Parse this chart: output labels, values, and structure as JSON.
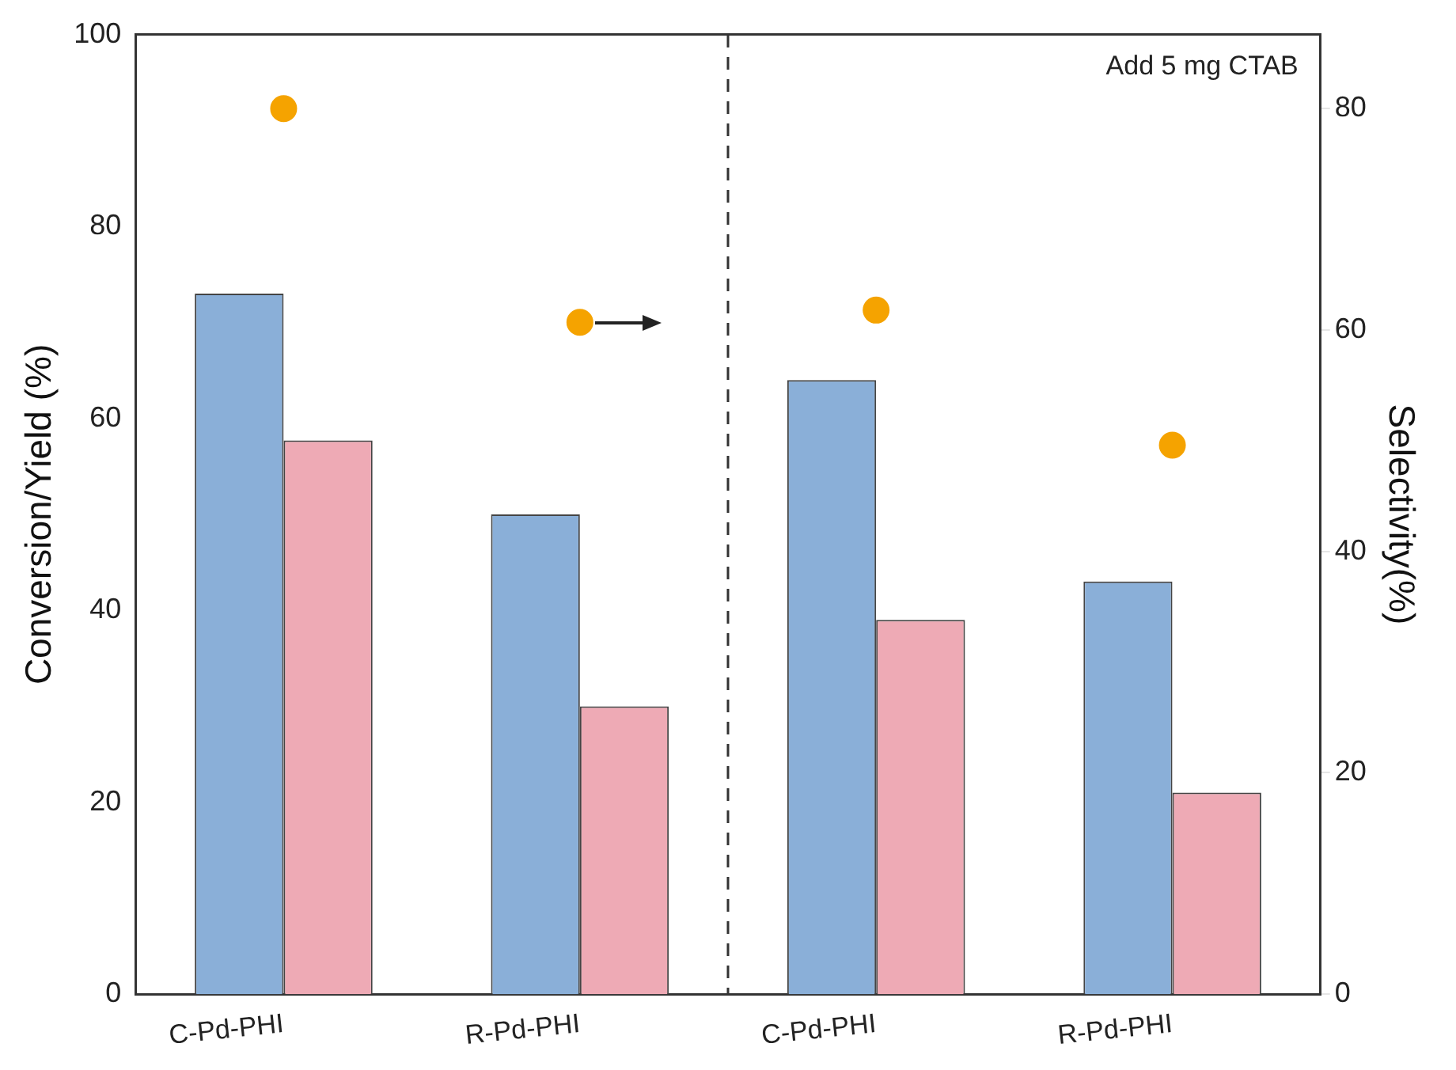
{
  "chart_data": {
    "type": "bar",
    "ylabel": "Conversion/Yield (%)",
    "y2label": "Selectivity(%)",
    "categories": [
      "C-Pd-PHI",
      "R-Pd-PHI",
      "C-Pd-PHI",
      "R-Pd-PHI"
    ],
    "series": [
      {
        "color": "#8aafd8",
        "values": [
          73,
          50,
          64,
          43
        ]
      },
      {
        "color": "#eeaab5",
        "values": [
          57.7,
          30,
          39,
          21
        ]
      },
      {
        "type": "scatter",
        "axis": "y2",
        "color": "#f5a300",
        "values": [
          80,
          60.7,
          61.8,
          49.6
        ]
      }
    ],
    "ylim": [
      0,
      100
    ],
    "yticks": [
      0,
      20,
      40,
      60,
      80,
      100
    ],
    "y2lim": [
      0,
      86.7
    ],
    "y2ticks": [
      0,
      20,
      40,
      60,
      80
    ],
    "annotations": [
      "Add 5 mg CTAB"
    ],
    "marker": "circle",
    "grid": false,
    "legend": false
  }
}
